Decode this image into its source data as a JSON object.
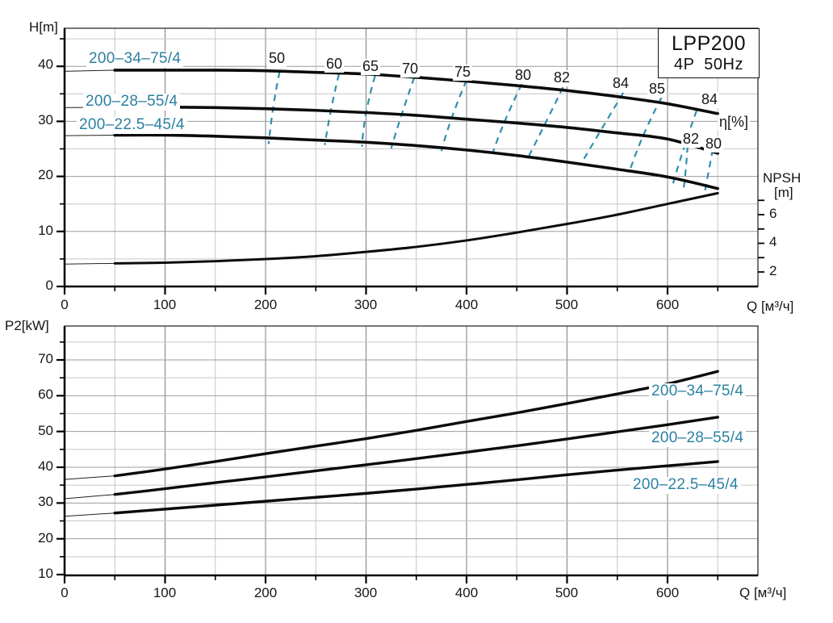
{
  "title_box": {
    "line1": "LPP200",
    "line2": "4P  50Hz"
  },
  "axes": {
    "top_y": {
      "title": "H[m]",
      "ticks": [
        "0",
        "10",
        "20",
        "30",
        "40"
      ]
    },
    "top_x": {
      "title": "Q [м³/ч]",
      "ticks": [
        "0",
        "100",
        "200",
        "300",
        "400",
        "500",
        "600"
      ]
    },
    "npsh": {
      "title_line1": "NPSH",
      "title_line2": "[m]",
      "ticks": [
        "2",
        "4",
        "6"
      ]
    },
    "bottom_y": {
      "title": "P2[kW]",
      "ticks": [
        "10",
        "20",
        "30",
        "40",
        "50",
        "60",
        "70"
      ]
    },
    "bottom_x": {
      "title": "Q [м³/ч]",
      "ticks": [
        "0",
        "100",
        "200",
        "300",
        "400",
        "500",
        "600"
      ]
    },
    "eta_label": "η[%]"
  },
  "curve_labels": {
    "top1": "200–34–75/4",
    "top2": "200–28–55/4",
    "top3": "200–22.5–45/4",
    "bottom1": "200–34–75/4",
    "bottom2": "200–28–55/4",
    "bottom3": "200–22.5–45/4"
  },
  "eta_labels": [
    "50",
    "60",
    "65",
    "70",
    "75",
    "80",
    "82",
    "84",
    "85",
    "84",
    "82",
    "80"
  ],
  "colors": {
    "accent_teal": "#2b80a1",
    "contour_teal": "#2e8fae",
    "curve_black": "#0b0b0b"
  },
  "chart_data": [
    {
      "type": "line",
      "title": "LPP200 4P 50Hz — Head vs Flow with efficiency contours and NPSH",
      "xlabel": "Q [м³/ч]",
      "ylabel": "H[m]",
      "y2label": "NPSH [m]",
      "xlim": [
        0,
        690
      ],
      "ylim": [
        0,
        47
      ],
      "y2lim_shown": [
        2,
        7
      ],
      "grid": true,
      "x": [
        50,
        100,
        150,
        200,
        250,
        300,
        350,
        400,
        450,
        500,
        550,
        600,
        650
      ],
      "series": [
        {
          "name": "200-34-75/4",
          "lead_y0": 39.1,
          "y": [
            39.3,
            39.3,
            39.3,
            39.2,
            38.9,
            38.6,
            38.0,
            37.3,
            36.5,
            35.6,
            34.5,
            33.2,
            31.4
          ]
        },
        {
          "name": "200-28-55/4",
          "lead_y0": 32.5,
          "y": [
            32.6,
            32.6,
            32.5,
            32.3,
            32.0,
            31.6,
            31.1,
            30.4,
            29.7,
            28.9,
            27.9,
            26.8,
            24.2
          ]
        },
        {
          "name": "200-22.5-45/4",
          "lead_y0": 27.4,
          "y": [
            27.5,
            27.5,
            27.3,
            27.0,
            26.6,
            26.2,
            25.6,
            24.8,
            23.8,
            22.6,
            21.3,
            19.9,
            17.8
          ]
        }
      ],
      "npsh_series": {
        "name": "NPSH",
        "lead_y0": 2.55,
        "y": [
          2.6,
          2.65,
          2.75,
          2.9,
          3.1,
          3.4,
          3.75,
          4.2,
          4.75,
          5.35,
          6.0,
          6.75,
          7.5
        ]
      },
      "efficiency_contours": [
        {
          "label": "50",
          "points": [
            [
              214,
              39.0
            ],
            [
              208,
              33.0
            ],
            [
              203,
              25.9
            ]
          ]
        },
        {
          "label": "60",
          "points": [
            [
              273,
              38.6
            ],
            [
              265,
              32.0
            ],
            [
              259,
              25.7
            ]
          ]
        },
        {
          "label": "65",
          "points": [
            [
              309,
              38.3
            ],
            [
              300,
              31.5
            ],
            [
              296,
              25.4
            ]
          ]
        },
        {
          "label": "70",
          "points": [
            [
              348,
              38.0
            ],
            [
              335,
              31.0
            ],
            [
              325,
              25.1
            ]
          ]
        },
        {
          "label": "75",
          "points": [
            [
              400,
              37.5
            ],
            [
              385,
              30.5
            ],
            [
              375,
              24.6
            ]
          ]
        },
        {
          "label": "80",
          "points": [
            [
              455,
              36.8
            ],
            [
              438,
              30.0
            ],
            [
              426,
              24.2
            ]
          ]
        },
        {
          "label": "82",
          "points": [
            [
              496,
              36.2
            ],
            [
              478,
              29.5
            ],
            [
              462,
              23.7
            ]
          ]
        },
        {
          "label": "84",
          "points": [
            [
              556,
              35.2
            ],
            [
              534,
              28.5
            ],
            [
              514,
              22.3
            ]
          ]
        },
        {
          "label": "85",
          "points": [
            [
              594,
              34.3
            ],
            [
              576,
              27.5
            ],
            [
              562,
              20.8
            ]
          ]
        },
        {
          "label": "84",
          "points": [
            [
              629,
              32.0
            ],
            [
              616,
              25.0
            ],
            [
              605,
              18.4
            ]
          ]
        },
        {
          "label": "82",
          "points": [
            [
              620,
              25.5
            ],
            [
              618,
              21.0
            ],
            [
              616,
              17.8
            ]
          ]
        },
        {
          "label": "80",
          "points": [
            [
              645,
              24.9
            ],
            [
              641,
              21.0
            ],
            [
              637,
              17.1
            ]
          ]
        }
      ]
    },
    {
      "type": "line",
      "title": "LPP200 4P 50Hz — Shaft power vs Flow",
      "xlabel": "Q [м³/ч]",
      "ylabel": "P2[kW]",
      "xlim": [
        0,
        690
      ],
      "ylim": [
        10,
        79
      ],
      "grid": true,
      "x": [
        50,
        100,
        150,
        200,
        250,
        300,
        350,
        400,
        450,
        500,
        550,
        600,
        650
      ],
      "series": [
        {
          "name": "200-34-75/4",
          "lead_y0": 36.6,
          "y": [
            37.6,
            39.5,
            41.6,
            43.8,
            45.9,
            48.0,
            50.3,
            52.8,
            55.2,
            57.8,
            60.5,
            63.3,
            66.8
          ]
        },
        {
          "name": "200-28-55/4",
          "lead_y0": 31.2,
          "y": [
            32.4,
            34.0,
            35.7,
            37.3,
            39.0,
            40.7,
            42.4,
            44.2,
            46.0,
            47.9,
            49.9,
            51.9,
            54.0
          ]
        },
        {
          "name": "200-22.5-45/4",
          "lead_y0": 26.3,
          "y": [
            27.2,
            28.3,
            29.4,
            30.5,
            31.6,
            32.7,
            33.9,
            35.2,
            36.5,
            37.9,
            39.2,
            40.4,
            41.6
          ]
        }
      ]
    }
  ]
}
